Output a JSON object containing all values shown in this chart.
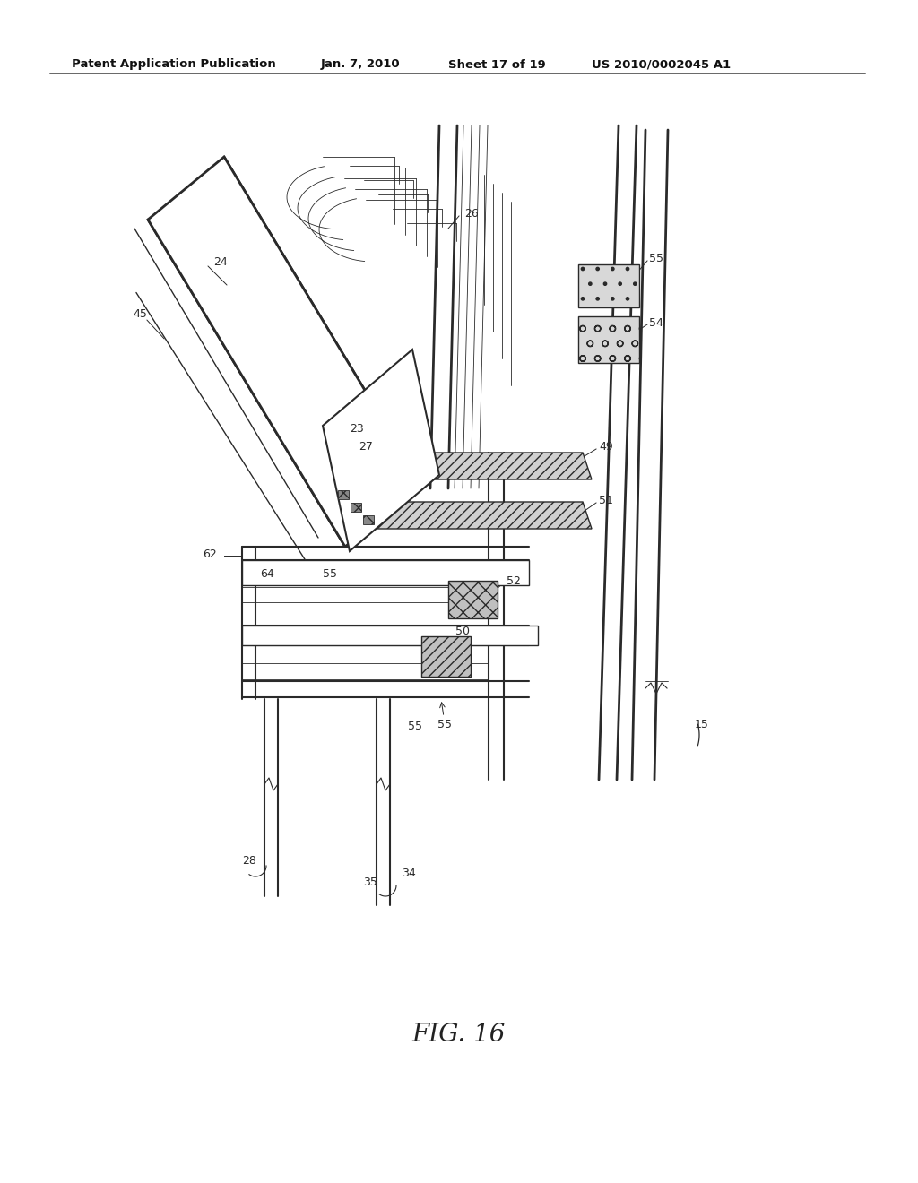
{
  "title": "Patent Application Publication",
  "date": "Jan. 7, 2010",
  "sheet": "Sheet 17 of 19",
  "patent_num": "US 2010/0002045 A1",
  "fig_label": "FIG. 16",
  "background_color": "#ffffff",
  "line_color": "#2a2a2a",
  "header_fontsize": 10,
  "fig_label_fontsize": 20
}
